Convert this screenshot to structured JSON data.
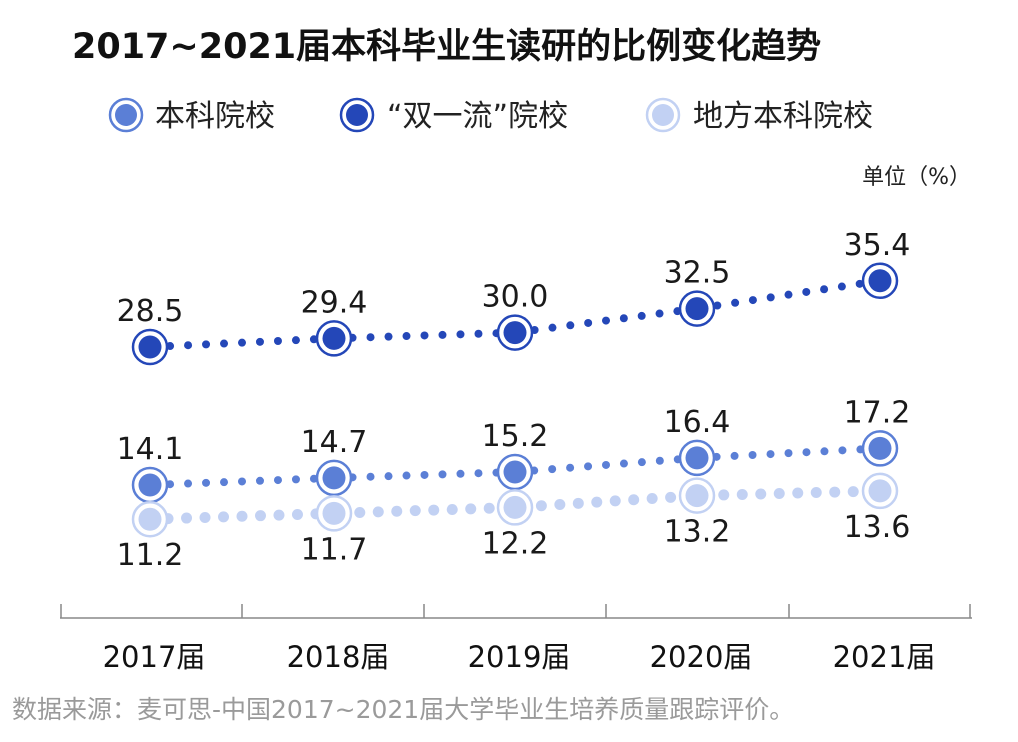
{
  "chart_data": {
    "type": "line",
    "title": "2017~2021届本科毕业生读研的比例变化趋势",
    "unit_label": "单位（%）",
    "categories": [
      "2017届",
      "2018届",
      "2019届",
      "2020届",
      "2021届"
    ],
    "series": [
      {
        "name": "本科院校",
        "values": [
          14.1,
          14.7,
          15.2,
          16.4,
          17.2
        ],
        "labels": [
          "14.1",
          "14.7",
          "15.2",
          "16.4",
          "17.2"
        ],
        "color": "#5b7fd6",
        "label_position": "above"
      },
      {
        "name": "“双一流”院校",
        "values": [
          28.5,
          29.4,
          30.0,
          32.5,
          35.4
        ],
        "labels": [
          "28.5",
          "29.4",
          "30.0",
          "32.5",
          "35.4"
        ],
        "color": "#2447b8",
        "label_position": "above"
      },
      {
        "name": "地方本科院校",
        "values": [
          11.2,
          11.7,
          12.2,
          13.2,
          13.6
        ],
        "labels": [
          "11.2",
          "11.7",
          "12.2",
          "13.2",
          "13.6"
        ],
        "color": "#c2d1f3",
        "label_position": "below"
      }
    ],
    "legend_position": "top",
    "line_style": "dotted",
    "grid": false,
    "source": "数据来源：麦可思-中国2017~2021届大学毕业生培养质量跟踪评价。"
  }
}
